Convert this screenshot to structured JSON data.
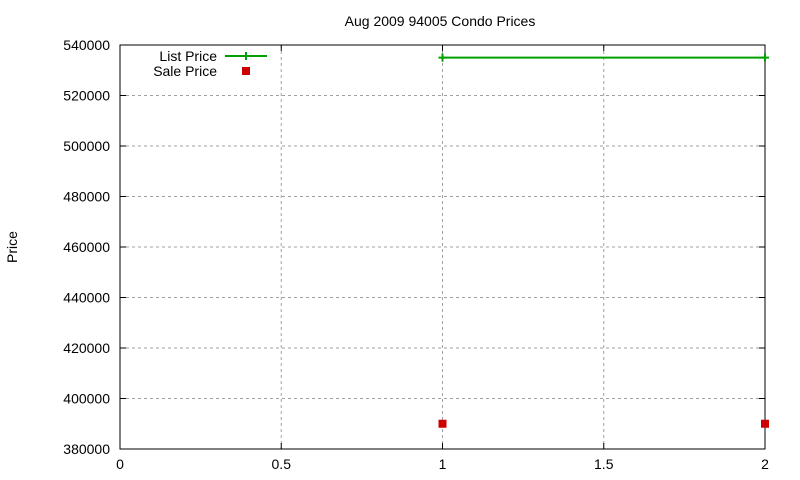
{
  "chart_data": {
    "type": "line",
    "title": "Aug 2009 94005 Condo Prices",
    "xlabel": "",
    "ylabel": "Price",
    "xlim": [
      0,
      2
    ],
    "ylim": [
      380000,
      540000
    ],
    "x_ticks": [
      "0",
      "0.5",
      "1",
      "1.5",
      "2"
    ],
    "y_ticks": [
      "380000",
      "400000",
      "420000",
      "440000",
      "460000",
      "480000",
      "500000",
      "520000",
      "540000"
    ],
    "grid": true,
    "legend_position": "top-left",
    "series": [
      {
        "name": "List Price",
        "style": "linespoints",
        "marker": "plus",
        "color": "#00a000",
        "x": [
          1,
          2
        ],
        "values": [
          535000,
          535000
        ]
      },
      {
        "name": "Sale Price",
        "style": "points",
        "marker": "square",
        "color": "#cc0000",
        "x": [
          1,
          2
        ],
        "values": [
          390000,
          390000
        ]
      }
    ]
  }
}
